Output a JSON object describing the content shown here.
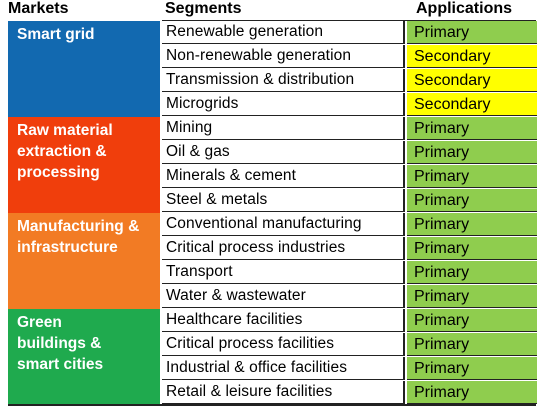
{
  "header": {
    "markets": "Markets",
    "segments": "Segments",
    "applications": "Applications"
  },
  "colors": {
    "smart_grid": "#1269b0",
    "raw_material": "#f03e0c",
    "manufacturing": "#f27b24",
    "green": "#1faa4e",
    "primary": "#8fcd4e",
    "secondary": "#ffff00"
  },
  "groups": [
    {
      "market": "Smart grid",
      "color": "smart_grid",
      "rows": [
        {
          "segment": "Renewable generation",
          "application": "Primary"
        },
        {
          "segment": "Non-renewable generation",
          "application": "Secondary"
        },
        {
          "segment": "Transmission & distribution",
          "application": "Secondary"
        },
        {
          "segment": "Microgrids",
          "application": "Secondary"
        }
      ]
    },
    {
      "market": "Raw material extraction & processing",
      "color": "raw_material",
      "rows": [
        {
          "segment": "Mining",
          "application": "Primary"
        },
        {
          "segment": "Oil & gas",
          "application": "Primary"
        },
        {
          "segment": "Minerals & cement",
          "application": "Primary"
        },
        {
          "segment": "Steel & metals",
          "application": "Primary"
        }
      ]
    },
    {
      "market": "Manufacturing & infrastructure",
      "color": "manufacturing",
      "rows": [
        {
          "segment": "Conventional manufacturing",
          "application": "Primary"
        },
        {
          "segment": "Critical process industries",
          "application": "Primary"
        },
        {
          "segment": "Transport",
          "application": "Primary"
        },
        {
          "segment": "Water & wastewater",
          "application": "Primary"
        }
      ]
    },
    {
      "market": "Green buildings & smart cities",
      "color": "green",
      "rows": [
        {
          "segment": "Healthcare facilities",
          "application": "Primary"
        },
        {
          "segment": "Critical process facilities",
          "application": "Primary"
        },
        {
          "segment": "Industrial & office facilities",
          "application": "Primary"
        },
        {
          "segment": "Retail & leisure facilities",
          "application": "Primary"
        }
      ]
    }
  ]
}
